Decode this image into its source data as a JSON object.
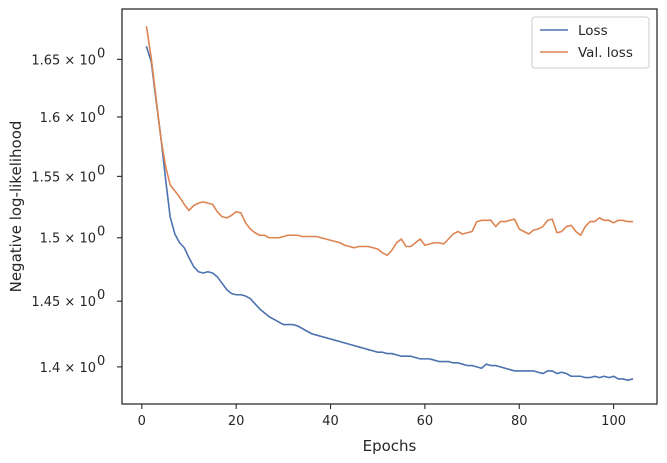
{
  "chart_data": {
    "type": "line",
    "title": "",
    "xlabel": "Epochs",
    "ylabel": "Negative log-likelihood",
    "yscale": "log",
    "xlim": [
      -4.2,
      109.2
    ],
    "ylim": [
      1.3725,
      1.695
    ],
    "grid": false,
    "legend_position": "top-right",
    "x_ticks": [
      0,
      20,
      40,
      60,
      80,
      100
    ],
    "y_ticks": [
      {
        "value": 1.4,
        "base": "1.4",
        "mult": "× ",
        "exp": "10",
        "sup": "0"
      },
      {
        "value": 1.45,
        "base": "1.45",
        "mult": "× ",
        "exp": "10",
        "sup": "0"
      },
      {
        "value": 1.5,
        "base": "1.5",
        "mult": "× ",
        "exp": "10",
        "sup": "0"
      },
      {
        "value": 1.55,
        "base": "1.55",
        "mult": "× ",
        "exp": "10",
        "sup": "0"
      },
      {
        "value": 1.6,
        "base": "1.6",
        "mult": "× ",
        "exp": "10",
        "sup": "0"
      },
      {
        "value": 1.65,
        "base": "1.65",
        "mult": "× ",
        "exp": "10",
        "sup": "0"
      }
    ],
    "series": [
      {
        "name": "Loss",
        "color": "#4c72b0",
        "x": [
          1,
          2,
          3,
          4,
          5,
          6,
          7,
          8,
          9,
          10,
          11,
          12,
          13,
          14,
          15,
          16,
          17,
          18,
          19,
          20,
          21,
          22,
          23,
          24,
          25,
          26,
          27,
          28,
          29,
          30,
          31,
          32,
          33,
          34,
          35,
          36,
          37,
          38,
          39,
          40,
          41,
          42,
          43,
          44,
          45,
          46,
          47,
          48,
          49,
          50,
          51,
          52,
          53,
          54,
          55,
          56,
          57,
          58,
          59,
          60,
          61,
          62,
          63,
          64,
          65,
          66,
          67,
          68,
          69,
          70,
          71,
          72,
          73,
          74,
          75,
          76,
          77,
          78,
          79,
          80,
          81,
          82,
          83,
          84,
          85,
          86,
          87,
          88,
          89,
          90,
          91,
          92,
          93,
          94,
          95,
          96,
          97,
          98,
          99,
          100,
          101,
          102,
          103,
          104
        ],
        "values": [
          1.661,
          1.648,
          1.615,
          1.584,
          1.549,
          1.517,
          1.503,
          1.496,
          1.492,
          1.484,
          1.477,
          1.473,
          1.472,
          1.473,
          1.472,
          1.469,
          1.464,
          1.459,
          1.456,
          1.455,
          1.455,
          1.454,
          1.452,
          1.448,
          1.444,
          1.441,
          1.438,
          1.436,
          1.434,
          1.432,
          1.432,
          1.432,
          1.431,
          1.429,
          1.427,
          1.425,
          1.424,
          1.423,
          1.422,
          1.421,
          1.42,
          1.419,
          1.418,
          1.417,
          1.416,
          1.415,
          1.414,
          1.413,
          1.412,
          1.411,
          1.411,
          1.41,
          1.41,
          1.409,
          1.408,
          1.408,
          1.408,
          1.407,
          1.406,
          1.406,
          1.406,
          1.405,
          1.404,
          1.404,
          1.404,
          1.403,
          1.403,
          1.402,
          1.401,
          1.401,
          1.4,
          1.399,
          1.402,
          1.401,
          1.401,
          1.4,
          1.399,
          1.398,
          1.397,
          1.397,
          1.397,
          1.397,
          1.397,
          1.396,
          1.395,
          1.397,
          1.397,
          1.395,
          1.396,
          1.395,
          1.393,
          1.393,
          1.393,
          1.392,
          1.392,
          1.393,
          1.392,
          1.393,
          1.392,
          1.393,
          1.391,
          1.391,
          1.39,
          1.391
        ]
      },
      {
        "name": "Val. loss",
        "color": "#dd8452",
        "x": [
          1,
          2,
          3,
          4,
          5,
          6,
          7,
          8,
          9,
          10,
          11,
          12,
          13,
          14,
          15,
          16,
          17,
          18,
          19,
          20,
          21,
          22,
          23,
          24,
          25,
          26,
          27,
          28,
          29,
          30,
          31,
          32,
          33,
          34,
          35,
          36,
          37,
          38,
          39,
          40,
          41,
          42,
          43,
          44,
          45,
          46,
          47,
          48,
          49,
          50,
          51,
          52,
          53,
          54,
          55,
          56,
          57,
          58,
          59,
          60,
          61,
          62,
          63,
          64,
          65,
          66,
          67,
          68,
          69,
          70,
          71,
          72,
          73,
          74,
          75,
          76,
          77,
          78,
          79,
          80,
          81,
          82,
          83,
          84,
          85,
          86,
          87,
          88,
          89,
          90,
          91,
          92,
          93,
          94,
          95,
          96,
          97,
          98,
          99,
          100,
          101,
          102,
          103,
          104
        ],
        "values": [
          1.679,
          1.651,
          1.617,
          1.583,
          1.559,
          1.543,
          1.538,
          1.533,
          1.527,
          1.522,
          1.526,
          1.528,
          1.529,
          1.528,
          1.527,
          1.521,
          1.517,
          1.516,
          1.518,
          1.521,
          1.52,
          1.512,
          1.507,
          1.504,
          1.502,
          1.502,
          1.5,
          1.5,
          1.5,
          1.501,
          1.502,
          1.502,
          1.502,
          1.501,
          1.501,
          1.501,
          1.501,
          1.5,
          1.499,
          1.498,
          1.497,
          1.496,
          1.494,
          1.493,
          1.492,
          1.493,
          1.493,
          1.493,
          1.492,
          1.491,
          1.488,
          1.486,
          1.49,
          1.496,
          1.499,
          1.493,
          1.493,
          1.496,
          1.499,
          1.494,
          1.495,
          1.496,
          1.496,
          1.495,
          1.499,
          1.503,
          1.505,
          1.503,
          1.504,
          1.505,
          1.513,
          1.514,
          1.514,
          1.514,
          1.509,
          1.513,
          1.513,
          1.514,
          1.515,
          1.507,
          1.505,
          1.503,
          1.506,
          1.507,
          1.509,
          1.514,
          1.515,
          1.504,
          1.505,
          1.509,
          1.51,
          1.505,
          1.502,
          1.509,
          1.513,
          1.513,
          1.516,
          1.514,
          1.514,
          1.512,
          1.514,
          1.514,
          1.513,
          1.513
        ]
      }
    ]
  }
}
